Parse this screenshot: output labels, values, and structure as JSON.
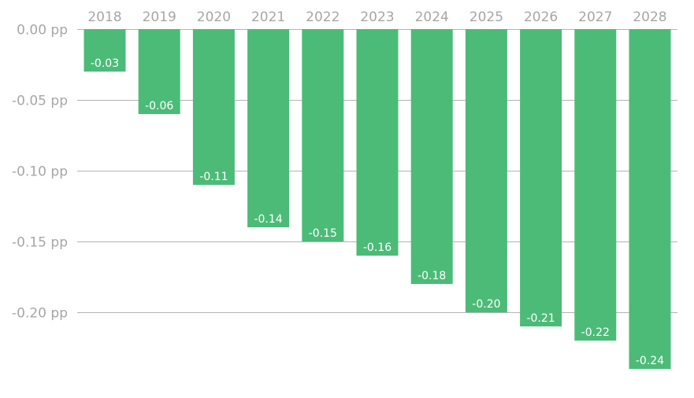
{
  "chart_data": {
    "type": "bar",
    "categories": [
      "2018",
      "2019",
      "2020",
      "2021",
      "2022",
      "2023",
      "2024",
      "2025",
      "2026",
      "2027",
      "2028"
    ],
    "values": [
      -0.03,
      -0.06,
      -0.11,
      -0.14,
      -0.15,
      -0.16,
      -0.18,
      -0.2,
      -0.21,
      -0.22,
      -0.24
    ],
    "value_labels": [
      "-0.03",
      "-0.06",
      "-0.11",
      "-0.14",
      "-0.15",
      "-0.16",
      "-0.18",
      "-0.20",
      "-0.21",
      "-0.22",
      "-0.24"
    ],
    "y_ticks": [
      0.0,
      -0.05,
      -0.1,
      -0.15,
      -0.2
    ],
    "y_tick_labels": [
      "0.00 pp",
      "-0.05 pp",
      "-0.10 pp",
      "-0.15 pp",
      "-0.20 pp"
    ],
    "ylim": [
      -0.24,
      0.0
    ],
    "x_axis_position": "top",
    "grid": true,
    "legend": "none",
    "title": "",
    "xlabel": "",
    "ylabel": ""
  },
  "colors": {
    "bar": "#4cbb78",
    "bar_label": "#ffffff",
    "axis_text": "#a6a6a6",
    "gridline": "#b3b3b3",
    "background": "#ffffff"
  }
}
